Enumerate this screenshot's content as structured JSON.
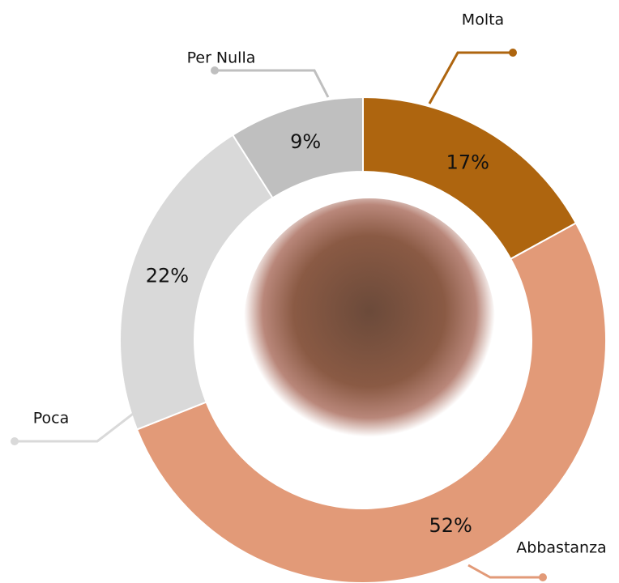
{
  "chart_data": {
    "type": "donut",
    "categories": [
      "Molta",
      "Abbastanza",
      "Poca",
      "Per Nulla"
    ],
    "values": [
      17,
      52,
      22,
      9
    ],
    "value_labels": [
      "17%",
      "52%",
      "22%",
      "9%"
    ],
    "colors": [
      "#ae650f",
      "#e29a78",
      "#d9d9d9",
      "#bfbfbf"
    ]
  }
}
